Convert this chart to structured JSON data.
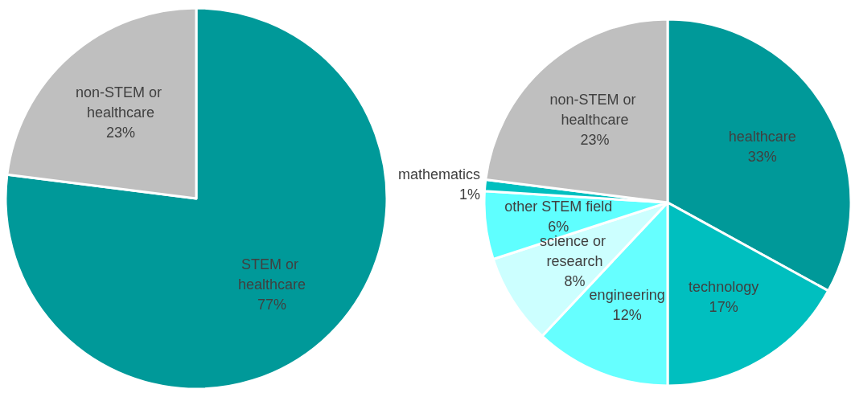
{
  "chart_data": [
    {
      "type": "pie",
      "categories": [
        "STEM or healthcare",
        "non-STEM or healthcare"
      ],
      "values": [
        77,
        23
      ],
      "colors": [
        "#009999",
        "#bfbfbf"
      ],
      "value_labels": [
        "77%",
        "23%"
      ]
    },
    {
      "type": "pie",
      "categories": [
        "healthcare",
        "technology",
        "engineering",
        "science or research",
        "other STEM field",
        "mathematics",
        "non-STEM or healthcare"
      ],
      "values": [
        33,
        17,
        12,
        8,
        6,
        1,
        23
      ],
      "colors": [
        "#009999",
        "#00bfbf",
        "#66ffff",
        "#ccffff",
        "#5fffff",
        "#00bfbf",
        "#bfbfbf"
      ],
      "value_labels": [
        "33%",
        "17%",
        "12%",
        "8%",
        "6%",
        "1%",
        "23%"
      ]
    }
  ]
}
